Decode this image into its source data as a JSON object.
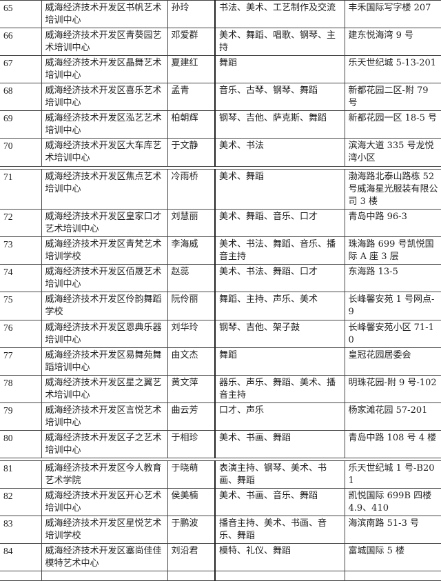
{
  "segments": [
    [
      {
        "no": "65",
        "name": "威海经济技术开发区书帆艺术培训中心",
        "person": "孙玲",
        "content": "书法、美术、工艺制作及交流",
        "address": "丰禾国际写字楼 207"
      },
      {
        "no": "66",
        "name": "威海经济技术开发区青葵园艺术培训中心",
        "person": "邓爱群",
        "content": "美术、舞蹈、唱歌、钢琴、主持",
        "address": "建东悦海湾 9 号"
      },
      {
        "no": "67",
        "name": "威海经济技术开发区晶舞艺术培训中心",
        "person": "夏建红",
        "content": "舞蹈",
        "address": "乐天世纪城 5-13-201"
      },
      {
        "no": "68",
        "name": "威海经济技术开发区喜乐艺术培训中心",
        "person": "孟青",
        "content": "音乐、古琴、钢琴、舞蹈",
        "address": "新都花园二区-附 79 号"
      },
      {
        "no": "69",
        "name": "威海经济技术开发区泓艺艺术培训中心",
        "person": "柏朝辉",
        "content": "钢琴、吉他、萨克斯、舞蹈",
        "address": "新都花园一区 18-5 号"
      },
      {
        "no": "70",
        "name": "威海经济技术开发区大车库艺术培训中心",
        "person": "于文静",
        "content": "美术、书法",
        "address": "滨海大道 335 号龙悦湾小区"
      }
    ],
    [
      {
        "no": "71",
        "name": "威海经济技术开发区焦点艺术培训中心",
        "person": "冷雨桥",
        "content": "美术、舞蹈",
        "address": "渤海路北泰山路栋 52 号威海星光服装有限公司 3 楼"
      },
      {
        "no": "72",
        "name": "威海经济技术开发区皇家口才艺术培训中心",
        "person": "刘慧丽",
        "content": "美术、舞蹈、音乐、口才",
        "address": "青岛中路 96-3"
      },
      {
        "no": "73",
        "name": "威海经济技术开发区青梵艺术培训学校",
        "person": "李海威",
        "content": "美术、书法、舞蹈、音乐、播音主持",
        "address": "珠海路 699 号凯悦国际 A 座 3 层"
      },
      {
        "no": "74",
        "name": "威海经济技术开发区佰晟艺术培训中心",
        "person": "赵蕊",
        "content": "美术、书法、舞蹈、口才",
        "address": "东海路 13-5"
      },
      {
        "no": "75",
        "name": "威海经济技术开发区伶韵舞蹈学校",
        "person": "阮伶丽",
        "content": "舞蹈、主持、声乐、美术",
        "address": "长峰馨安苑 1 号网点-9"
      },
      {
        "no": "76",
        "name": "威海经济技术开发区恩典乐器培训中心",
        "person": "刘华玲",
        "content": "钢琴、吉他、架子鼓",
        "address": "长峰馨安苑小区 71-10"
      },
      {
        "no": "77",
        "name": "威海经济技术开发区易舞苑舞蹈培训中心",
        "person": "由文杰",
        "content": "舞蹈",
        "address": "皇冠花园居委会"
      },
      {
        "no": "78",
        "name": "威海经济技术开发区星之翼艺术培训中心",
        "person": "黄文萍",
        "content": "器乐、声乐、舞蹈、美术、播音主持",
        "address": "明珠花园-附 9 号-102"
      },
      {
        "no": "79",
        "name": "威海经济技术开发区言悦艺术培训中心",
        "person": "曲云芳",
        "content": "口才、声乐",
        "address": "杨家滩花园 57-201"
      },
      {
        "no": "80",
        "name": "威海经济技术开发区子之艺术培训中心",
        "person": "于相珍",
        "content": "美术、书画、舞蹈",
        "address": "青岛中路 108 号 4 楼"
      }
    ],
    [
      {
        "no": "81",
        "name": "威海经济技术开发区今人教育艺术学院",
        "person": "于晓萌",
        "content": "表演主持、钢琴、美术、书画、舞蹈",
        "address": "乐天世纪城 1 号-B201"
      },
      {
        "no": "82",
        "name": "威海经济技术开发区开心艺术培训中心",
        "person": "侯美楠",
        "content": "美术、书画、音乐、舞蹈",
        "address": "凯悦国际 699B 四楼 4.9、410"
      },
      {
        "no": "83",
        "name": "威海经济技术开发区星悦艺术培训学校",
        "person": "于鹏波",
        "content": "播音主持、美术、书画、音乐、舞蹈",
        "address": "海滨南路 51-3 号"
      },
      {
        "no": "84",
        "name": "威海经济技术开发区塞尚佳佳模特艺术中心",
        "person": "刘沿君",
        "content": "模特、礼仪、舞蹈",
        "address": "富城国际 5 楼"
      },
      {
        "no": "",
        "name": "",
        "person": "",
        "content": "",
        "address": ""
      }
    ]
  ]
}
